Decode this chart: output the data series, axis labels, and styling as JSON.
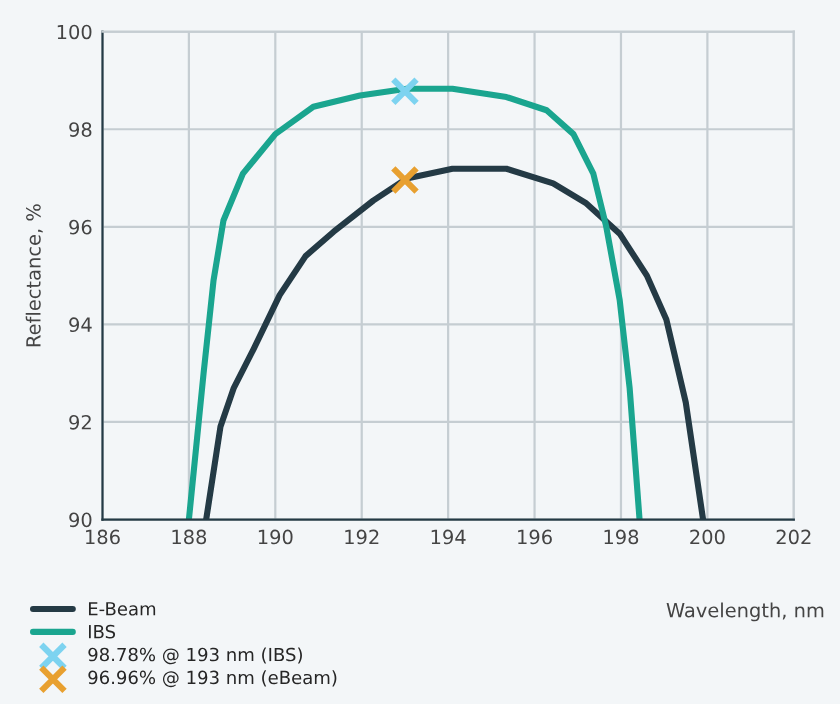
{
  "chart_data": {
    "type": "line",
    "xlabel": "Wavelength, nm",
    "ylabel": "Reflectance, %",
    "xlim": [
      186,
      202
    ],
    "xticks": [
      186,
      188,
      190,
      192,
      194,
      196,
      198,
      200,
      202
    ],
    "ylim": [
      90,
      100
    ],
    "yticks": [
      90,
      92,
      94,
      96,
      98,
      100
    ],
    "grid": true,
    "legend": "bottom left",
    "line_style": "solid",
    "series": [
      {
        "name": "E-Beam",
        "color": "#243a45",
        "x": [
          188.4,
          188.73,
          189.04,
          189.5,
          190.1,
          190.7,
          191.35,
          192.27,
          193.04,
          194.1,
          195.35,
          196.43,
          197.2,
          197.97,
          198.6,
          199.05,
          199.5,
          199.9
        ],
        "values": [
          90,
          91.9,
          92.7,
          93.5,
          94.6,
          95.4,
          95.9,
          96.54,
          96.99,
          97.19,
          97.19,
          96.89,
          96.48,
          95.86,
          95.0,
          94.1,
          92.4,
          90
        ]
      },
      {
        "name": "IBS",
        "color": "#1aa58f",
        "x": [
          188.0,
          188.34,
          188.57,
          188.8,
          189.25,
          190.0,
          190.88,
          191.96,
          193.04,
          194.1,
          195.35,
          196.28,
          196.9,
          197.36,
          197.66,
          197.97,
          198.2,
          198.43
        ],
        "values": [
          90,
          93.0,
          94.9,
          96.13,
          97.09,
          97.9,
          98.46,
          98.69,
          98.83,
          98.83,
          98.66,
          98.39,
          97.9,
          97.09,
          96.0,
          94.5,
          92.7,
          90
        ]
      },
      {
        "name": "98.78% @ 193 nm (IBS)",
        "type": "scatter",
        "marker": "cross",
        "color": "#7dd3f0",
        "x": [
          193
        ],
        "values": [
          98.78
        ]
      },
      {
        "name": "96.96% @ 193 nm (eBeam)",
        "type": "scatter",
        "marker": "cross",
        "color": "#e8a030",
        "x": [
          193
        ],
        "values": [
          96.96
        ]
      }
    ]
  }
}
